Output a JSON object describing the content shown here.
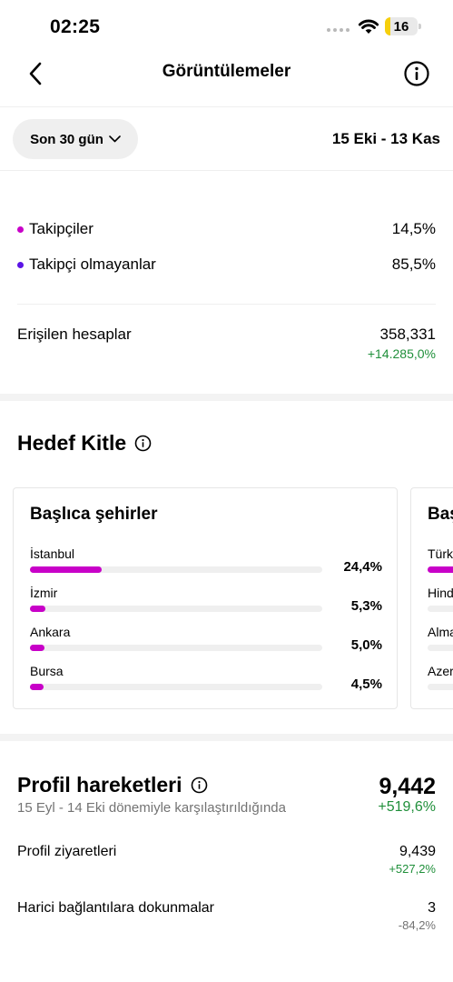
{
  "status_bar": {
    "time": "02:25",
    "battery_level": "16",
    "battery_fraction": 0.16,
    "battery_color": "#f6cf0c",
    "signal_icon": "cellular-signal-icon",
    "wifi_icon": "wifi-icon"
  },
  "header": {
    "title": "Görüntülemeler",
    "back_icon": "chevron-left-icon",
    "info_icon": "info-circle-icon"
  },
  "filter": {
    "label": "Son 30 gün",
    "date_range": "15 Eki - 13 Kas"
  },
  "audience_split": [
    {
      "label": "Takipçiler",
      "value": "14,5%",
      "color": "#c800c8"
    },
    {
      "label": "Takipçi olmayanlar",
      "value": "85,5%",
      "color": "#5b14e6"
    }
  ],
  "reach": {
    "label": "Erişilen hesaplar",
    "value": "358,331",
    "change": "+14.285,0%"
  },
  "target_audience": {
    "title": "Hedef Kitle",
    "top_cities": {
      "title": "Başlıca şehirler",
      "items": [
        {
          "name": "İstanbul",
          "value": "24,4%",
          "fraction": 0.244
        },
        {
          "name": "İzmir",
          "value": "5,3%",
          "fraction": 0.053
        },
        {
          "name": "Ankara",
          "value": "5,0%",
          "fraction": 0.05
        },
        {
          "name": "Bursa",
          "value": "4,5%",
          "fraction": 0.045
        }
      ]
    },
    "top_countries": {
      "title": "Baş",
      "items": [
        {
          "name": "Türk"
        },
        {
          "name": "Hind"
        },
        {
          "name": "Alma"
        },
        {
          "name": "Azer"
        }
      ]
    },
    "bar_color": "#c800c8"
  },
  "profile_activity": {
    "title": "Profil hareketleri",
    "subtitle": "15 Eyl - 14 Eki dönemiyle karşılaştırıldığında",
    "total": "9,442",
    "total_change": "+519,6%",
    "rows": [
      {
        "label": "Profil ziyaretleri",
        "value": "9,439",
        "change": "+527,2%"
      },
      {
        "label": "Harici bağlantılara dokunmalar",
        "value": "3",
        "change": "-84,2%"
      }
    ]
  },
  "colors": {
    "positive": "#1f8f3a",
    "negative": "#737373"
  }
}
